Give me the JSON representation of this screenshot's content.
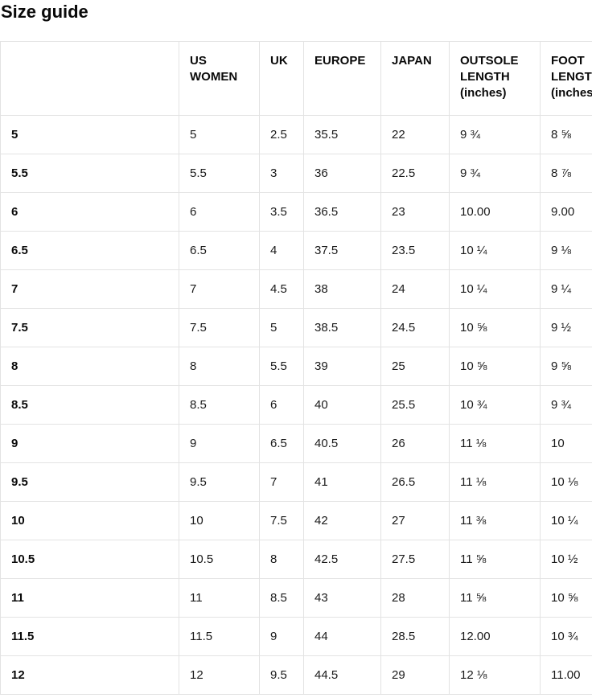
{
  "page": {
    "title": "Size guide"
  },
  "colors": {
    "background": "#ffffff",
    "text": "#1a1a1a",
    "heading_text": "#0a0a0a",
    "border": "#e3e3e3"
  },
  "table": {
    "columns": [
      {
        "key": "size",
        "label": ""
      },
      {
        "key": "us_women",
        "label": "US WOMEN"
      },
      {
        "key": "uk",
        "label": "UK"
      },
      {
        "key": "europe",
        "label": "EUROPE"
      },
      {
        "key": "japan",
        "label": "JAPAN"
      },
      {
        "key": "outsole_length",
        "label": "OUTSOLE LENGTH (inches)"
      },
      {
        "key": "foot_length",
        "label": "FOOT LENGTH (inches)"
      }
    ],
    "rows": [
      {
        "size": "5",
        "us_women": "5",
        "uk": "2.5",
        "europe": "35.5",
        "japan": "22",
        "outsole_length": "9 ¾",
        "foot_length": "8 ⅝"
      },
      {
        "size": "5.5",
        "us_women": "5.5",
        "uk": "3",
        "europe": "36",
        "japan": "22.5",
        "outsole_length": "9 ¾",
        "foot_length": "8 ⅞"
      },
      {
        "size": "6",
        "us_women": "6",
        "uk": "3.5",
        "europe": "36.5",
        "japan": "23",
        "outsole_length": "10.00",
        "foot_length": "9.00"
      },
      {
        "size": "6.5",
        "us_women": "6.5",
        "uk": "4",
        "europe": "37.5",
        "japan": "23.5",
        "outsole_length": "10 ¼",
        "foot_length": "9 ⅛"
      },
      {
        "size": "7",
        "us_women": "7",
        "uk": "4.5",
        "europe": "38",
        "japan": "24",
        "outsole_length": "10 ¼",
        "foot_length": "9 ¼"
      },
      {
        "size": "7.5",
        "us_women": "7.5",
        "uk": "5",
        "europe": "38.5",
        "japan": "24.5",
        "outsole_length": "10 ⅝",
        "foot_length": "9 ½"
      },
      {
        "size": "8",
        "us_women": "8",
        "uk": "5.5",
        "europe": "39",
        "japan": "25",
        "outsole_length": "10 ⅝",
        "foot_length": "9 ⅝"
      },
      {
        "size": "8.5",
        "us_women": "8.5",
        "uk": "6",
        "europe": "40",
        "japan": "25.5",
        "outsole_length": "10 ¾",
        "foot_length": "9 ¾"
      },
      {
        "size": "9",
        "us_women": "9",
        "uk": "6.5",
        "europe": "40.5",
        "japan": "26",
        "outsole_length": "11 ⅛",
        "foot_length": "10"
      },
      {
        "size": "9.5",
        "us_women": "9.5",
        "uk": "7",
        "europe": "41",
        "japan": "26.5",
        "outsole_length": "11 ⅛",
        "foot_length": "10 ⅛"
      },
      {
        "size": "10",
        "us_women": "10",
        "uk": "7.5",
        "europe": "42",
        "japan": "27",
        "outsole_length": "11 ⅜",
        "foot_length": "10 ¼"
      },
      {
        "size": "10.5",
        "us_women": "10.5",
        "uk": "8",
        "europe": "42.5",
        "japan": "27.5",
        "outsole_length": "11 ⅝",
        "foot_length": "10 ½"
      },
      {
        "size": "11",
        "us_women": "11",
        "uk": "8.5",
        "europe": "43",
        "japan": "28",
        "outsole_length": "11 ⅝",
        "foot_length": "10 ⅝"
      },
      {
        "size": "11.5",
        "us_women": "11.5",
        "uk": "9",
        "europe": "44",
        "japan": "28.5",
        "outsole_length": "12.00",
        "foot_length": "10 ¾"
      },
      {
        "size": "12",
        "us_women": "12",
        "uk": "9.5",
        "europe": "44.5",
        "japan": "29",
        "outsole_length": "12 ⅛",
        "foot_length": "11.00"
      }
    ]
  }
}
